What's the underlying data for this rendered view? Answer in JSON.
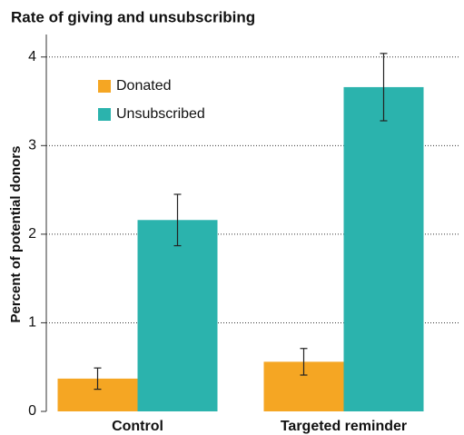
{
  "chart_data": {
    "type": "bar",
    "title": "Rate of giving and unsubscribing",
    "ylabel": "Percent of potential donors",
    "categories": [
      "Control",
      "Targeted reminder"
    ],
    "series": [
      {
        "name": "Donated",
        "color": "#f5a623",
        "values": [
          0.37,
          0.56
        ],
        "errors": [
          0.12,
          0.15
        ]
      },
      {
        "name": "Unsubscribed",
        "color": "#2bb3ad",
        "values": [
          2.16,
          3.66
        ],
        "errors": [
          0.29,
          0.38
        ]
      }
    ],
    "ylim": [
      0,
      4.1
    ],
    "yticks": [
      0,
      1,
      2,
      3,
      4
    ],
    "grid": true,
    "legend": "upper left"
  }
}
